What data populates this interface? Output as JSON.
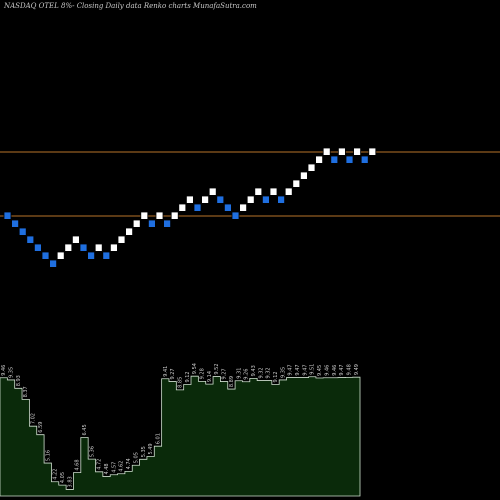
{
  "header": {
    "title": "NASDAQ OTEL  8%-  Closing Daily data  Renko  charts MunafaSutra.com"
  },
  "colors": {
    "background": "#000000",
    "up_brick": "#ffffff",
    "down_brick": "#1f6fe0",
    "brick_border": "#000000",
    "level_line": "#b8732a",
    "volume_fill": "#0a2a0a",
    "volume_stroke": "#cfe0cf",
    "volume_label": "#d0d0d0"
  },
  "chart_data": [
    {
      "type": "renko",
      "title": "NASDAQ OTEL  8%-  Closing Daily data  Renko  charts MunafaSutra.com",
      "bricks": [
        {
          "dir": "down",
          "level": 0
        },
        {
          "dir": "down",
          "level": -1
        },
        {
          "dir": "down",
          "level": -2
        },
        {
          "dir": "down",
          "level": -3
        },
        {
          "dir": "down",
          "level": -4
        },
        {
          "dir": "down",
          "level": -5
        },
        {
          "dir": "down",
          "level": -6
        },
        {
          "dir": "up",
          "level": -5
        },
        {
          "dir": "up",
          "level": -4
        },
        {
          "dir": "up",
          "level": -3
        },
        {
          "dir": "down",
          "level": -4
        },
        {
          "dir": "down",
          "level": -5
        },
        {
          "dir": "up",
          "level": -4
        },
        {
          "dir": "down",
          "level": -5
        },
        {
          "dir": "up",
          "level": -4
        },
        {
          "dir": "up",
          "level": -3
        },
        {
          "dir": "up",
          "level": -2
        },
        {
          "dir": "up",
          "level": -1
        },
        {
          "dir": "up",
          "level": 0
        },
        {
          "dir": "down",
          "level": -1
        },
        {
          "dir": "up",
          "level": 0
        },
        {
          "dir": "down",
          "level": -1
        },
        {
          "dir": "up",
          "level": 0
        },
        {
          "dir": "up",
          "level": 1
        },
        {
          "dir": "up",
          "level": 2
        },
        {
          "dir": "down",
          "level": 1
        },
        {
          "dir": "up",
          "level": 2
        },
        {
          "dir": "up",
          "level": 3
        },
        {
          "dir": "down",
          "level": 2
        },
        {
          "dir": "down",
          "level": 1
        },
        {
          "dir": "down",
          "level": 0
        },
        {
          "dir": "up",
          "level": 1
        },
        {
          "dir": "up",
          "level": 2
        },
        {
          "dir": "up",
          "level": 3
        },
        {
          "dir": "down",
          "level": 2
        },
        {
          "dir": "up",
          "level": 3
        },
        {
          "dir": "down",
          "level": 2
        },
        {
          "dir": "up",
          "level": 3
        },
        {
          "dir": "up",
          "level": 4
        },
        {
          "dir": "up",
          "level": 5
        },
        {
          "dir": "up",
          "level": 6
        },
        {
          "dir": "up",
          "level": 7
        },
        {
          "dir": "up",
          "level": 8
        },
        {
          "dir": "down",
          "level": 7
        },
        {
          "dir": "up",
          "level": 8
        },
        {
          "dir": "down",
          "level": 7
        },
        {
          "dir": "up",
          "level": 8
        },
        {
          "dir": "down",
          "level": 7
        },
        {
          "dir": "up",
          "level": 8
        }
      ],
      "horizontal_levels": [
        8.5,
        0.5
      ]
    },
    {
      "type": "bar",
      "series": [
        {
          "values": [
            9.46,
            9.35,
            8.93,
            8.37,
            7.02,
            6.59,
            5.16,
            4.22,
            4.05,
            3.83,
            4.68,
            6.45,
            5.36,
            4.72,
            4.48,
            4.57,
            4.62,
            4.74,
            5.05,
            5.35,
            5.49,
            6.01,
            9.41,
            9.27,
            8.85,
            9.12,
            9.54,
            9.28,
            9.14,
            9.52,
            9.27,
            8.89,
            9.31,
            9.26,
            9.43,
            9.32,
            9.32,
            9.12,
            9.35,
            9.47,
            9.47,
            9.47,
            9.51,
            9.45,
            9.46,
            9.46,
            9.47,
            9.48,
            9.49
          ],
          "labels": [
            "9.46",
            "9.35",
            "8.93",
            "8.37",
            "7.02",
            "6.59",
            "5.16",
            "4.22",
            "4.05",
            "3.83",
            "4.68",
            "6.45",
            "5.36",
            "4.72",
            "4.48",
            "4.57",
            "4.62",
            "4.74",
            "5.05",
            "5.35",
            "5.49",
            "6.01",
            "9.41",
            "9.27",
            "8.85",
            "9.12",
            "9.54",
            "9.28",
            "9.14",
            "9.52",
            "9.27",
            "8.89",
            "9.31",
            "9.26",
            "9.43",
            "9.32",
            "9.32",
            "9.12",
            "9.35",
            "9.47",
            "9.47",
            "9.47",
            "9.51",
            "9.45",
            "9.46",
            "9.46",
            "9.47",
            "9.48",
            "9.49"
          ]
        }
      ]
    }
  ]
}
